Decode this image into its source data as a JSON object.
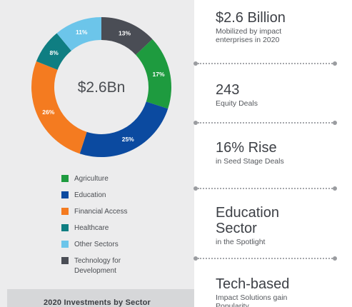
{
  "chart_data": {
    "type": "pie",
    "variant": "donut",
    "center_label": "$2.6Bn",
    "title": "2020 Investments by Sector",
    "categories": [
      "Technology for Development",
      "Agriculture",
      "Education",
      "Financial Access",
      "Healthcare",
      "Other Sectors"
    ],
    "values": [
      13,
      17,
      25,
      26,
      8,
      11
    ],
    "slice_labels": [
      "13%",
      "17%",
      "25%",
      "26%",
      "8%",
      "11%"
    ],
    "colors": [
      "#4a4d55",
      "#1e9b3f",
      "#0b4aa0",
      "#f47b20",
      "#0f7e82",
      "#6cc5ea"
    ],
    "start_angle_deg": 0,
    "direction": "clockwise"
  },
  "legend": [
    {
      "label": "Agriculture",
      "color": "#1e9b3f"
    },
    {
      "label": "Education",
      "color": "#0b4aa0"
    },
    {
      "label": "Financial Access",
      "color": "#f47b20"
    },
    {
      "label": "Healthcare",
      "color": "#0f7e82"
    },
    {
      "label": "Other Sectors",
      "color": "#6cc5ea"
    },
    {
      "label": "Technology for\nDevelopment",
      "color": "#4a4d55"
    }
  ],
  "stats": [
    {
      "value": "$2.6 Billion",
      "desc": "Mobilized by impact\nenterprises in 2020"
    },
    {
      "value": "243",
      "desc": "Equity Deals"
    },
    {
      "value": "16% Rise",
      "desc": "in Seed Stage Deals"
    },
    {
      "value": "Education\nSector",
      "desc": "in the Spotlight"
    },
    {
      "value": "Tech-based",
      "desc": "Impact Solutions gain\nPopularity"
    }
  ]
}
